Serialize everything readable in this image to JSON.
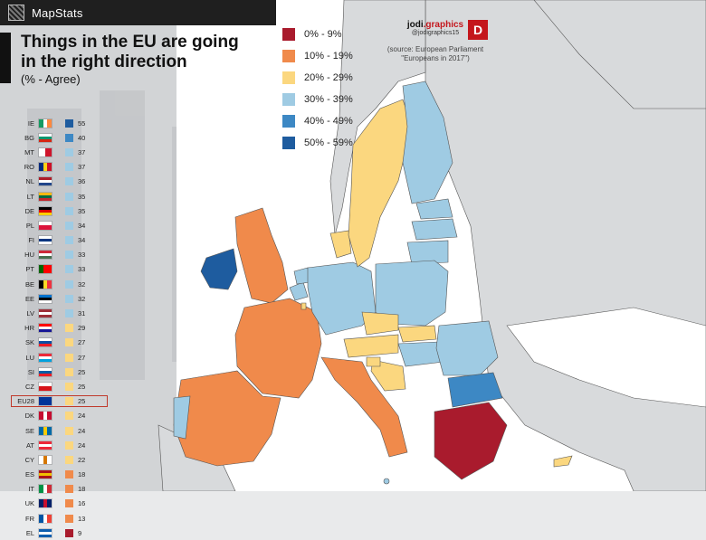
{
  "header": {
    "brand": "MapStats"
  },
  "title": "Things in the EU are going in the right direction",
  "subtitle": "(% - Agree)",
  "credit": {
    "logo_name": "jodi",
    "logo_domain": ".graphics",
    "handle": "@jodigraphics15",
    "badge": "D",
    "source_line1": "(source: European Parliament",
    "source_line2": "\"Europeans in 2017\")"
  },
  "colors": {
    "bin_0_9": "#a91b2d",
    "bin_10_19": "#f08a4b",
    "bin_20_29": "#fbd77f",
    "bin_30_39": "#9fcbe3",
    "bin_40_49": "#3d88c4",
    "bin_50_59": "#1e5c9f",
    "non_eu": "#d8dadc",
    "sea": "#ffffff"
  },
  "legend": [
    {
      "label": "0% - 9%",
      "color": "#a91b2d"
    },
    {
      "label": "10% - 19%",
      "color": "#f08a4b"
    },
    {
      "label": "20% - 29%",
      "color": "#fbd77f"
    },
    {
      "label": "30% - 39%",
      "color": "#9fcbe3"
    },
    {
      "label": "40% - 49%",
      "color": "#3d88c4"
    },
    {
      "label": "50% - 59%",
      "color": "#1e5c9f"
    }
  ],
  "ranking": [
    {
      "code": "IE",
      "value": 55,
      "flag": [
        "#169b62",
        "#ffffff",
        "#ff883e"
      ]
    },
    {
      "code": "BG",
      "value": 40,
      "flag": [
        "#ffffff",
        "#00966e",
        "#d62612"
      ],
      "h": true
    },
    {
      "code": "MT",
      "value": 37,
      "flag": [
        "#ffffff",
        "#cf142b"
      ]
    },
    {
      "code": "RO",
      "value": 37,
      "flag": [
        "#002b7f",
        "#fcd116",
        "#ce1126"
      ]
    },
    {
      "code": "NL",
      "value": 36,
      "flag": [
        "#ae1c28",
        "#ffffff",
        "#21468b"
      ],
      "h": true
    },
    {
      "code": "LT",
      "value": 35,
      "flag": [
        "#fdb913",
        "#006a44",
        "#c1272d"
      ],
      "h": true
    },
    {
      "code": "DE",
      "value": 35,
      "flag": [
        "#000000",
        "#dd0000",
        "#ffce00"
      ],
      "h": true
    },
    {
      "code": "PL",
      "value": 34,
      "flag": [
        "#ffffff",
        "#dc143c"
      ],
      "h": true
    },
    {
      "code": "FI",
      "value": 34,
      "flag": [
        "#ffffff",
        "#003580",
        "#ffffff"
      ],
      "h": true
    },
    {
      "code": "HU",
      "value": 33,
      "flag": [
        "#ce2939",
        "#ffffff",
        "#477050"
      ],
      "h": true
    },
    {
      "code": "PT",
      "value": 33,
      "flag": [
        "#006600",
        "#ff0000",
        "#ff0000"
      ]
    },
    {
      "code": "BE",
      "value": 32,
      "flag": [
        "#000000",
        "#fdda24",
        "#ef3340"
      ]
    },
    {
      "code": "EE",
      "value": 32,
      "flag": [
        "#0072ce",
        "#000000",
        "#ffffff"
      ],
      "h": true
    },
    {
      "code": "LV",
      "value": 31,
      "flag": [
        "#9e3039",
        "#ffffff",
        "#9e3039"
      ],
      "h": true
    },
    {
      "code": "HR",
      "value": 29,
      "flag": [
        "#ff0000",
        "#ffffff",
        "#171796"
      ],
      "h": true
    },
    {
      "code": "SK",
      "value": 27,
      "flag": [
        "#ffffff",
        "#0b4ea2",
        "#ee1c25"
      ],
      "h": true
    },
    {
      "code": "LU",
      "value": 27,
      "flag": [
        "#ed2939",
        "#ffffff",
        "#00a1de"
      ],
      "h": true
    },
    {
      "code": "SI",
      "value": 25,
      "flag": [
        "#ffffff",
        "#005da4",
        "#ed1c24"
      ],
      "h": true
    },
    {
      "code": "CZ",
      "value": 25,
      "flag": [
        "#ffffff",
        "#d7141a"
      ],
      "h": true
    },
    {
      "code": "EU28",
      "value": 25,
      "flag": [
        "#003399",
        "#003399"
      ],
      "highlight": true
    },
    {
      "code": "DK",
      "value": 24,
      "flag": [
        "#c60c30",
        "#ffffff",
        "#c60c30"
      ]
    },
    {
      "code": "SE",
      "value": 24,
      "flag": [
        "#006aa7",
        "#fecc00",
        "#006aa7"
      ]
    },
    {
      "code": "AT",
      "value": 24,
      "flag": [
        "#ed2939",
        "#ffffff",
        "#ed2939"
      ],
      "h": true
    },
    {
      "code": "CY",
      "value": 22,
      "flag": [
        "#ffffff",
        "#d57800",
        "#ffffff"
      ]
    },
    {
      "code": "ES",
      "value": 18,
      "flag": [
        "#aa151b",
        "#f1bf00",
        "#aa151b"
      ],
      "h": true
    },
    {
      "code": "IT",
      "value": 18,
      "flag": [
        "#009246",
        "#ffffff",
        "#ce2b37"
      ]
    },
    {
      "code": "UK",
      "value": 16,
      "flag": [
        "#012169",
        "#c8102e",
        "#012169"
      ]
    },
    {
      "code": "FR",
      "value": 13,
      "flag": [
        "#0055a4",
        "#ffffff",
        "#ef4135"
      ]
    },
    {
      "code": "EL",
      "value": 9,
      "flag": [
        "#0d5eaf",
        "#ffffff",
        "#0d5eaf"
      ],
      "h": true
    }
  ]
}
